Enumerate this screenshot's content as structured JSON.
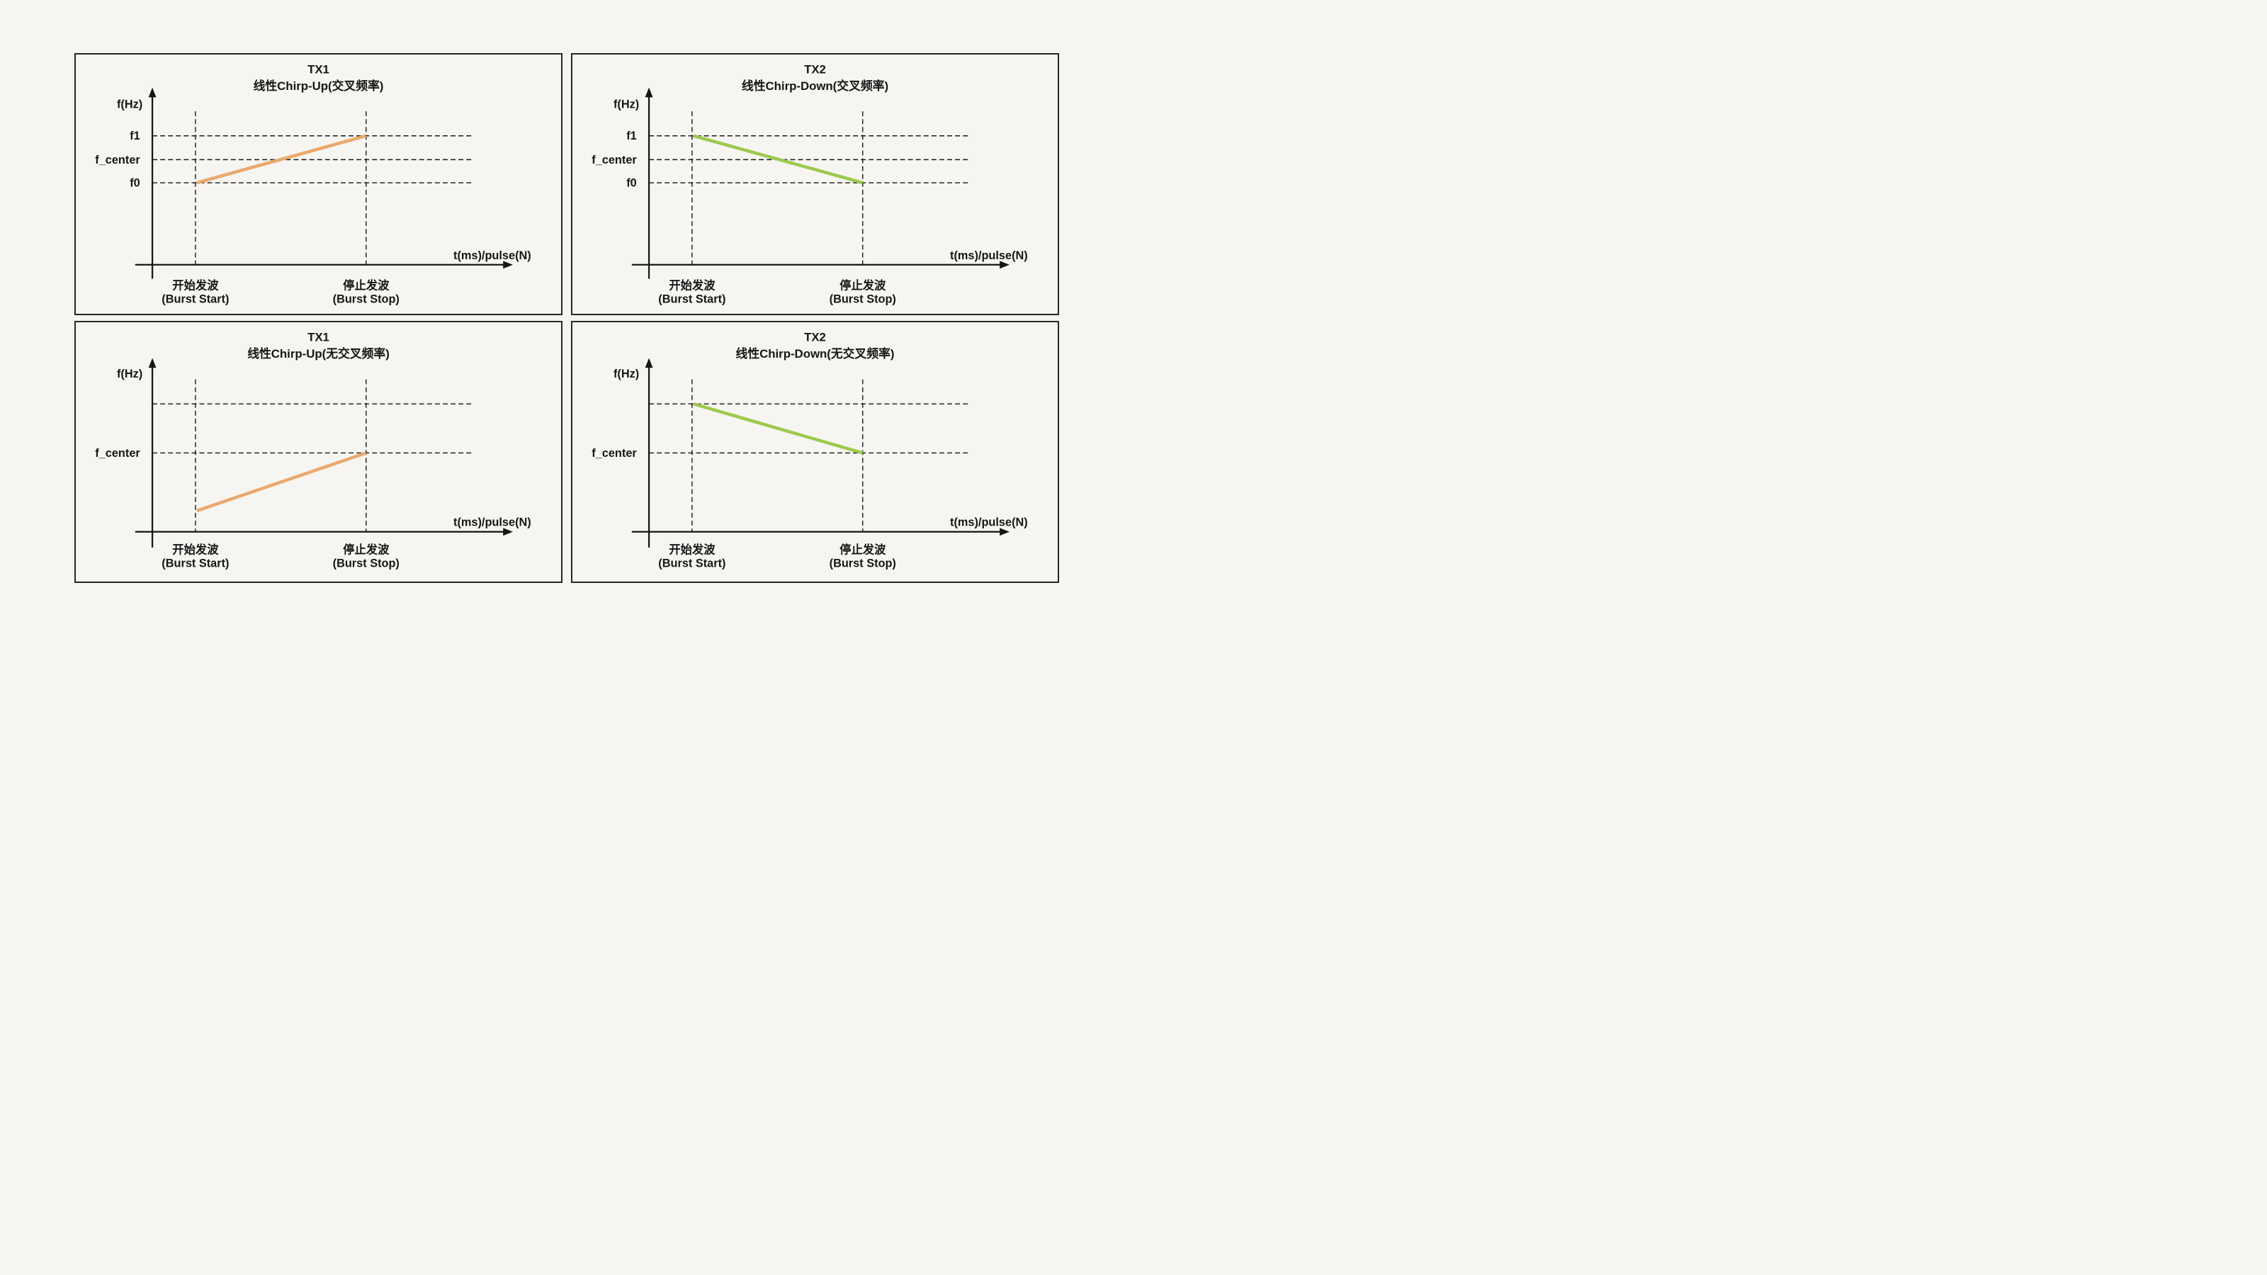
{
  "page": {
    "background": "#F7F5F1"
  },
  "colors": {
    "tx1_orange": "#EAA96E",
    "tx2_green": "#9DC94E",
    "ink": "#161616",
    "panel_border": "#262626",
    "background": "#F7F5F1"
  },
  "axis": {
    "y_label": "f(Hz)",
    "x_label": "t(ms)/pulse(N)"
  },
  "ticks": {
    "start": [
      "开始发波",
      "(Burst Start)"
    ],
    "stop": [
      "停止发波",
      "(Burst Stop)"
    ]
  },
  "panels": [
    {
      "id": "tx1-chirp-up-cross",
      "variant": "three-level",
      "title": [
        "TX1",
        "线性Chirp-Up(交叉频率)"
      ],
      "accent": "#EAA96E",
      "gridlines": [
        {
          "label": "f1",
          "level": "f1"
        },
        {
          "label": "f_center",
          "level": "f_center"
        },
        {
          "label": "f0",
          "level": "f0"
        }
      ],
      "chirp": {
        "from": "f0",
        "to": "f1"
      }
    },
    {
      "id": "tx2-chirp-down-cross",
      "variant": "three-level",
      "title": [
        "TX2",
        "线性Chirp-Down(交叉频率)"
      ],
      "accent": "#9DC94E",
      "gridlines": [
        {
          "label": "f1",
          "level": "f1"
        },
        {
          "label": "f_center",
          "level": "f_center"
        },
        {
          "label": "f0",
          "level": "f0"
        }
      ],
      "chirp": {
        "from": "f1",
        "to": "f0"
      }
    },
    {
      "id": "tx1-chirp-up-nocross",
      "variant": "two-level",
      "title": [
        "TX1",
        "线性Chirp-Up(无交叉频率)"
      ],
      "accent": "#EAA96E",
      "gridlines": [
        {
          "label": "",
          "level": "upper"
        },
        {
          "label": "f_center",
          "level": "f_center"
        }
      ],
      "chirp": {
        "from": "below",
        "to": "f_center"
      }
    },
    {
      "id": "tx2-chirp-down-nocross",
      "variant": "two-level",
      "title": [
        "TX2",
        "线性Chirp-Down(无交叉频率)"
      ],
      "accent": "#9DC94E",
      "gridlines": [
        {
          "label": "",
          "level": "upper"
        },
        {
          "label": "f_center",
          "level": "f_center"
        }
      ],
      "chirp": {
        "from": "upper",
        "to": "f_center"
      }
    }
  ],
  "chart_data": [
    {
      "type": "line",
      "title": "TX1 线性Chirp-Up(交叉频率)",
      "xlabel": "t(ms)/pulse(N)",
      "ylabel": "f(Hz)",
      "x_categories": [
        "开始发波 (Burst Start)",
        "停止发波 (Burst Stop)"
      ],
      "series": [
        {
          "name": "TX1 linear chirp up",
          "values": [
            "f0",
            "f1"
          ]
        }
      ],
      "y_gridlines": [
        "f1",
        "f_center",
        "f0"
      ],
      "line_color": "#EAA96E",
      "grid": "dashed",
      "legend": "none"
    },
    {
      "type": "line",
      "title": "TX2 线性Chirp-Down(交叉频率)",
      "xlabel": "t(ms)/pulse(N)",
      "ylabel": "f(Hz)",
      "x_categories": [
        "开始发波 (Burst Start)",
        "停止发波 (Burst Stop)"
      ],
      "series": [
        {
          "name": "TX2 linear chirp down",
          "values": [
            "f1",
            "f0"
          ]
        }
      ],
      "y_gridlines": [
        "f1",
        "f_center",
        "f0"
      ],
      "line_color": "#9DC94E",
      "grid": "dashed",
      "legend": "none"
    },
    {
      "type": "line",
      "title": "TX1 线性Chirp-Up(无交叉频率)",
      "xlabel": "t(ms)/pulse(N)",
      "ylabel": "f(Hz)",
      "x_categories": [
        "开始发波 (Burst Start)",
        "停止发波 (Burst Stop)"
      ],
      "series": [
        {
          "name": "TX1 linear chirp up",
          "values": [
            "below f_center (unlabeled)",
            "f_center"
          ]
        }
      ],
      "y_gridlines": [
        "(unlabeled upper line)",
        "f_center"
      ],
      "line_color": "#EAA96E",
      "grid": "dashed",
      "legend": "none"
    },
    {
      "type": "line",
      "title": "TX2 线性Chirp-Down(无交叉频率)",
      "xlabel": "t(ms)/pulse(N)",
      "ylabel": "f(Hz)",
      "x_categories": [
        "开始发波 (Burst Start)",
        "停止发波 (Burst Stop)"
      ],
      "series": [
        {
          "name": "TX2 linear chirp down",
          "values": [
            "above f_center (unlabeled)",
            "f_center"
          ]
        }
      ],
      "y_gridlines": [
        "(unlabeled upper line)",
        "f_center"
      ],
      "line_color": "#9DC94E",
      "grid": "dashed",
      "legend": "none"
    }
  ]
}
